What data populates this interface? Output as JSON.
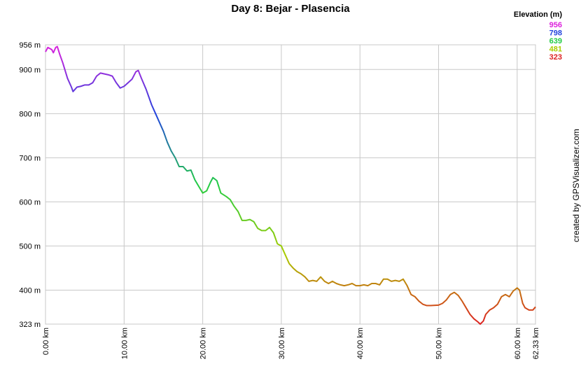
{
  "chart_data": {
    "type": "line",
    "title": "Day 8: Bejar - Plasencia",
    "credit": "created by GPSVisualizer.com",
    "legend": {
      "title": "Elevation (m)",
      "items": [
        {
          "value": 956,
          "color": "#dd22dd"
        },
        {
          "value": 798,
          "color": "#2244dd"
        },
        {
          "value": 639,
          "color": "#22cc44"
        },
        {
          "value": 481,
          "color": "#aacc00"
        },
        {
          "value": 323,
          "color": "#dd2222"
        }
      ]
    },
    "grid": true,
    "xlim": [
      0,
      62.33
    ],
    "ylim": [
      323,
      956
    ],
    "xticks": [
      {
        "value": 0,
        "label": "0.00 km"
      },
      {
        "value": 10,
        "label": "10.00 km"
      },
      {
        "value": 20,
        "label": "20.00 km"
      },
      {
        "value": 30,
        "label": "30.00 km"
      },
      {
        "value": 40,
        "label": "40.00 km"
      },
      {
        "value": 50,
        "label": "50.00 km"
      },
      {
        "value": 60,
        "label": "60.00 km"
      },
      {
        "value": 62.33,
        "label": "62.33 km"
      }
    ],
    "yticks": [
      {
        "value": 323,
        "label": "323 m"
      },
      {
        "value": 400,
        "label": "400 m"
      },
      {
        "value": 500,
        "label": "500 m"
      },
      {
        "value": 600,
        "label": "600 m"
      },
      {
        "value": 700,
        "label": "700 m"
      },
      {
        "value": 800,
        "label": "800 m"
      },
      {
        "value": 900,
        "label": "900 m"
      },
      {
        "value": 956,
        "label": "956 m"
      }
    ],
    "x": [
      0,
      0.3,
      0.8,
      1.0,
      1.3,
      1.5,
      1.8,
      2.2,
      2.8,
      3.3,
      3.5,
      4,
      4.5,
      5,
      5.5,
      6,
      6.5,
      7,
      7.5,
      8,
      8.5,
      9,
      9.5,
      10,
      10.5,
      11,
      11.5,
      11.8,
      12.2,
      12.8,
      13.5,
      14,
      14.5,
      15,
      15.5,
      16,
      16.5,
      17,
      17.5,
      18,
      18.5,
      19,
      19.5,
      20,
      20.5,
      21,
      21.3,
      21.8,
      22.3,
      23,
      23.5,
      24,
      24.5,
      25,
      25.5,
      26,
      26.5,
      27,
      27.5,
      28,
      28.5,
      29,
      29.5,
      30,
      30.5,
      31,
      31.5,
      32,
      32.5,
      33,
      33.5,
      34,
      34.5,
      35,
      35.5,
      36,
      36.5,
      37,
      37.5,
      38,
      38.5,
      39,
      39.5,
      40,
      40.5,
      41,
      41.5,
      42,
      42.5,
      43,
      43.5,
      44,
      44.5,
      45,
      45.5,
      46,
      46.5,
      47,
      47.5,
      48,
      48.5,
      49,
      50,
      50.5,
      51,
      51.5,
      52,
      52.5,
      53,
      53.5,
      54,
      54.5,
      55,
      55.3,
      55.7,
      56,
      56.5,
      57,
      57.5,
      58,
      58.5,
      59,
      59.5,
      60,
      60.3,
      60.7,
      61,
      61.5,
      62,
      62.33
    ],
    "values": [
      940,
      950,
      945,
      938,
      950,
      952,
      935,
      915,
      880,
      860,
      850,
      860,
      862,
      865,
      865,
      870,
      885,
      892,
      890,
      888,
      885,
      870,
      858,
      862,
      870,
      878,
      895,
      898,
      880,
      855,
      820,
      800,
      780,
      760,
      735,
      715,
      700,
      680,
      680,
      670,
      672,
      650,
      635,
      620,
      625,
      645,
      655,
      648,
      620,
      612,
      605,
      590,
      578,
      558,
      558,
      560,
      555,
      540,
      535,
      535,
      542,
      530,
      505,
      500,
      480,
      460,
      450,
      442,
      437,
      430,
      420,
      422,
      420,
      430,
      420,
      415,
      420,
      415,
      412,
      410,
      412,
      415,
      410,
      410,
      412,
      410,
      415,
      415,
      412,
      425,
      425,
      420,
      422,
      420,
      425,
      410,
      390,
      385,
      375,
      368,
      365,
      365,
      366,
      370,
      378,
      390,
      395,
      388,
      375,
      360,
      345,
      335,
      328,
      323,
      330,
      345,
      355,
      360,
      368,
      385,
      390,
      385,
      398,
      405,
      400,
      370,
      360,
      355,
      355,
      362
    ]
  }
}
